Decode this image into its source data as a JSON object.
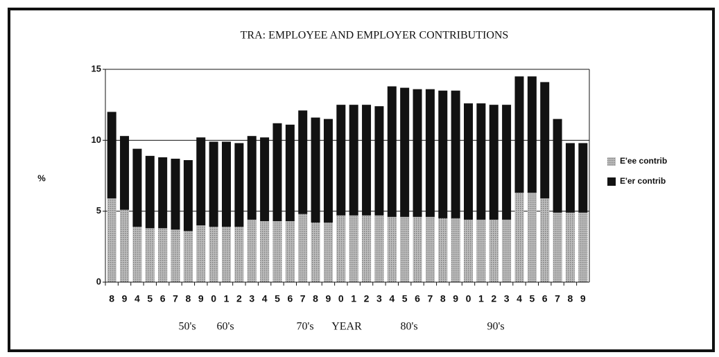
{
  "chart_data": {
    "type": "stacked_bar",
    "title": "TRA:  EMPLOYEE AND EMPLOYER CONTRIBUTIONS",
    "y_label": "%",
    "categories": [
      "8",
      "9",
      "4",
      "5",
      "6",
      "7",
      "8",
      "9",
      "0",
      "1",
      "2",
      "3",
      "4",
      "5",
      "6",
      "7",
      "8",
      "9",
      "0",
      "1",
      "2",
      "3",
      "4",
      "5",
      "6",
      "7",
      "8",
      "9",
      "0",
      "1",
      "2",
      "3",
      "4",
      "5",
      "6",
      "7",
      "8",
      "9"
    ],
    "series": [
      {
        "name": "E'ee contrib",
        "color": "#9c9c9c",
        "values": [
          5.9,
          5.1,
          3.9,
          3.8,
          3.8,
          3.7,
          3.6,
          4.0,
          3.9,
          3.9,
          3.9,
          4.4,
          4.3,
          4.3,
          4.3,
          4.8,
          4.2,
          4.2,
          4.7,
          4.7,
          4.7,
          4.7,
          4.6,
          4.6,
          4.6,
          4.6,
          4.5,
          4.5,
          4.4,
          4.4,
          4.4,
          4.4,
          6.3,
          6.3,
          5.9,
          4.9,
          4.9,
          4.9
        ]
      },
      {
        "name": "E'er contrib",
        "color": "#121212",
        "values": [
          6.1,
          5.2,
          5.5,
          5.1,
          5.0,
          5.0,
          5.0,
          6.2,
          6.0,
          6.0,
          5.9,
          5.9,
          5.9,
          6.9,
          6.8,
          7.3,
          7.4,
          7.3,
          7.8,
          7.8,
          7.8,
          7.7,
          9.2,
          9.1,
          9.0,
          9.0,
          9.0,
          9.0,
          8.2,
          8.2,
          8.1,
          8.1,
          8.2,
          8.2,
          8.2,
          6.6,
          4.9,
          4.9
        ]
      }
    ],
    "annotations": [
      "50's",
      "60's",
      "70's",
      "YEAR",
      "80's",
      "90's"
    ],
    "ylim": [
      0,
      15
    ],
    "yticks": [
      0,
      5,
      10,
      15
    ],
    "grid": true,
    "legend": "right"
  }
}
